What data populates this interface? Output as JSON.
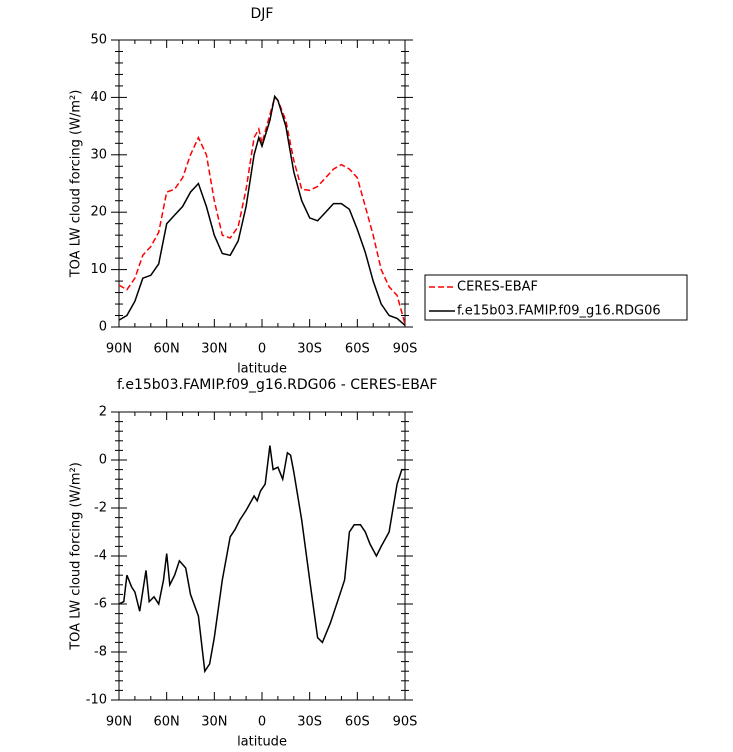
{
  "chart_data": [
    {
      "type": "line",
      "title": "DJF",
      "xlabel": "latitude",
      "ylabel": "TOA LW cloud forcing (W/m²)",
      "x": [
        90,
        85,
        80,
        75,
        70,
        65,
        60,
        55,
        50,
        45,
        40,
        35,
        30,
        25,
        20,
        15,
        10,
        5,
        2,
        0,
        -5,
        -8,
        -10,
        -15,
        -20,
        -25,
        -30,
        -35,
        -40,
        -45,
        -50,
        -55,
        -60,
        -65,
        -70,
        -75,
        -80,
        -85,
        -90
      ],
      "series": [
        {
          "name": "CERES-EBAF",
          "color": "#ff0000",
          "line_style": "dashed",
          "values": [
            7.3,
            6.5,
            8.5,
            12.5,
            14,
            16.5,
            23.5,
            24,
            26,
            30,
            33,
            30,
            22,
            16,
            15.5,
            17.5,
            24,
            33,
            34.5,
            32,
            37,
            40,
            39.5,
            36,
            29,
            24,
            23.8,
            24.5,
            26,
            27.5,
            28.3,
            27.5,
            26,
            21,
            16,
            10,
            7,
            5.5,
            0.5
          ]
        },
        {
          "name": "f.e15b03.FAMIP.f09_g16.RDG06",
          "color": "#000000",
          "line_style": "solid",
          "values": [
            1.2,
            2,
            4.5,
            8.5,
            9,
            11,
            18,
            19.5,
            21,
            23.5,
            25,
            21,
            16,
            12.8,
            12.5,
            15,
            21,
            30,
            33,
            31.5,
            36,
            40.2,
            39.5,
            35,
            27,
            22,
            19,
            18.5,
            20,
            21.5,
            21.5,
            20.5,
            17,
            13,
            8,
            4,
            2,
            1.5,
            0.3
          ]
        }
      ],
      "xlim": [
        90,
        -90
      ],
      "xticks": [
        {
          "value": 90,
          "label": "90N"
        },
        {
          "value": 60,
          "label": "60N"
        },
        {
          "value": 30,
          "label": "30N"
        },
        0,
        {
          "value": -30,
          "label": "30S"
        },
        {
          "value": -60,
          "label": "60S"
        },
        {
          "value": -90,
          "label": "90S"
        }
      ],
      "ylim": [
        0,
        50
      ],
      "yticks": [
        0,
        10,
        20,
        30,
        40,
        50
      ],
      "legend": "right"
    },
    {
      "type": "line",
      "title": "f.e15b03.FAMIP.f09_g16.RDG06 - CERES-EBAF",
      "xlabel": "latitude",
      "ylabel": "TOA LW cloud forcing (W/m²)",
      "x": [
        90,
        87,
        85,
        82,
        80,
        77,
        73,
        71,
        68,
        65,
        62,
        60,
        58,
        55,
        52,
        48,
        45,
        40,
        36,
        33,
        30,
        25,
        20,
        17,
        14,
        10,
        5,
        3,
        1,
        -2,
        -5,
        -7,
        -10,
        -13,
        -16,
        -18,
        -20,
        -25,
        -30,
        -35,
        -38,
        -43,
        -48,
        -52,
        -55,
        -58,
        -62,
        -65,
        -68,
        -72,
        -75,
        -80,
        -85,
        -88,
        -90
      ],
      "color": "#000000",
      "values": [
        -6,
        -5.9,
        -4.8,
        -5.3,
        -5.5,
        -6.3,
        -4.6,
        -5.9,
        -5.7,
        -6,
        -5,
        -3.9,
        -5.2,
        -4.8,
        -4.2,
        -4.5,
        -5.6,
        -6.5,
        -8.8,
        -8.5,
        -7.4,
        -5,
        -3.2,
        -2.9,
        -2.5,
        -2.1,
        -1.5,
        -1.7,
        -1.3,
        -1,
        0.6,
        -0.4,
        -0.3,
        -0.8,
        0.3,
        0.2,
        -0.5,
        -2.5,
        -5,
        -7.4,
        -7.6,
        -6.8,
        -5.8,
        -5,
        -3,
        -2.7,
        -2.7,
        -3,
        -3.5,
        -4,
        -3.6,
        -3,
        -1,
        -0.4,
        -0.4
      ],
      "xlim": [
        90,
        -90
      ],
      "xticks": [
        {
          "value": 90,
          "label": "90N"
        },
        {
          "value": 60,
          "label": "60N"
        },
        {
          "value": 30,
          "label": "30N"
        },
        0,
        {
          "value": -30,
          "label": "30S"
        },
        {
          "value": -60,
          "label": "60S"
        },
        {
          "value": -90,
          "label": "90S"
        }
      ],
      "ylim": [
        -10,
        2
      ],
      "yticks": [
        -10,
        -8,
        -6,
        -4,
        -2,
        0,
        2
      ]
    }
  ]
}
